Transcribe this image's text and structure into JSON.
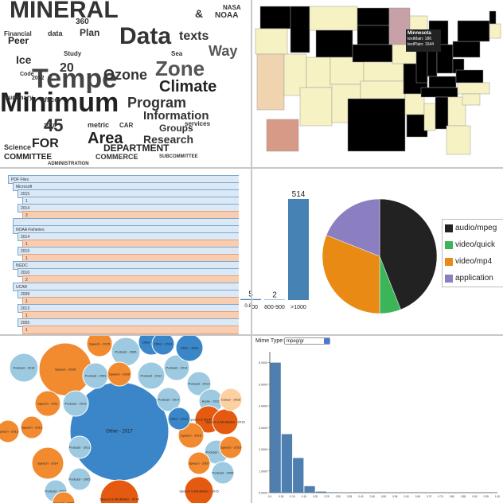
{
  "word_cloud": {
    "words": [
      {
        "t": "MINERAL",
        "s": 30,
        "c": "#333"
      },
      {
        "t": "Tempe",
        "s": 34,
        "c": "#444"
      },
      {
        "t": "Minimum",
        "s": 34,
        "c": "#222"
      },
      {
        "t": "Data",
        "s": 30,
        "c": "#333"
      },
      {
        "t": "Ozone",
        "s": 18,
        "c": "#333"
      },
      {
        "t": "Zone",
        "s": 26,
        "c": "#555"
      },
      {
        "t": "Climate",
        "s": 20,
        "c": "#222"
      },
      {
        "t": "Program",
        "s": 18,
        "c": "#333"
      },
      {
        "t": "Information",
        "s": 15,
        "c": "#333"
      },
      {
        "t": "Area",
        "s": 20,
        "c": "#222"
      },
      {
        "t": "Research",
        "s": 14,
        "c": "#333"
      },
      {
        "t": "DEPARTMENT",
        "s": 12,
        "c": "#222"
      },
      {
        "t": "texts",
        "s": 16,
        "c": "#333"
      },
      {
        "t": "Plan",
        "s": 12,
        "c": "#333"
      },
      {
        "t": "Peer",
        "s": 12,
        "c": "#222"
      },
      {
        "t": "Ice",
        "s": 14,
        "c": "#333"
      },
      {
        "t": "FOR",
        "s": 16,
        "c": "#222"
      },
      {
        "t": "Groups",
        "s": 12,
        "c": "#333"
      },
      {
        "t": "Science",
        "s": 9,
        "c": "#333"
      },
      {
        "t": "COMMITTEE",
        "s": 10,
        "c": "#222"
      },
      {
        "t": "Summary",
        "s": 8,
        "c": "#333"
      },
      {
        "t": "Office",
        "s": 8,
        "c": "#333"
      },
      {
        "t": "metric",
        "s": 9,
        "c": "#333"
      },
      {
        "t": "Study",
        "s": 8,
        "c": "#333"
      },
      {
        "t": "NOAA",
        "s": 10,
        "c": "#333"
      },
      {
        "t": "NASA",
        "s": 8,
        "c": "#333"
      },
      {
        "t": "Way",
        "s": 18,
        "c": "#555"
      },
      {
        "t": "Financial",
        "s": 8,
        "c": "#333"
      },
      {
        "t": "Sea",
        "s": 8,
        "c": "#333"
      },
      {
        "t": "ADMINISTRATION",
        "s": 6,
        "c": "#333"
      },
      {
        "t": "SUBCOMMITTEE",
        "s": 6,
        "c": "#333"
      },
      {
        "t": "COMMERCE",
        "s": 9,
        "c": "#333"
      },
      {
        "t": "data",
        "s": 9,
        "c": "#333"
      },
      {
        "t": "Code",
        "s": 7,
        "c": "#333"
      },
      {
        "t": "2012",
        "s": 7,
        "c": "#333"
      },
      {
        "t": "2010",
        "s": 7,
        "c": "#333"
      },
      {
        "t": "360",
        "s": 10,
        "c": "#333"
      },
      {
        "t": "45",
        "s": 22,
        "c": "#333"
      },
      {
        "t": "20",
        "s": 16,
        "c": "#333"
      },
      {
        "t": "CAR",
        "s": 8,
        "c": "#333"
      },
      {
        "t": "services",
        "s": 8,
        "c": "#333"
      },
      {
        "t": "&",
        "s": 14,
        "c": "#333"
      }
    ]
  },
  "map": {
    "states_black": [
      "WA",
      "ID",
      "WY",
      "ND",
      "SD",
      "NE",
      "MO",
      "IL",
      "IN",
      "OH",
      "KY",
      "TN",
      "MI",
      "PA",
      "NY",
      "VT",
      "TX",
      "AL",
      "WV",
      "VA"
    ],
    "highlight_color": "#c8a0a8",
    "tooltip": {
      "title": "Minnesota",
      "line1": "textMain: 186",
      "line2": "textPlain: 1644"
    }
  },
  "tree": {
    "rows": [
      {
        "label": "PDF Files",
        "color": "blue",
        "indent": 0
      },
      {
        "label": "Microsoft",
        "color": "blue",
        "indent": 1
      },
      {
        "label": "2015",
        "color": "blue",
        "indent": 2
      },
      {
        "label": "1",
        "color": "blue",
        "indent": 3
      },
      {
        "label": "2014",
        "color": "blue",
        "indent": 2
      },
      {
        "label": "2",
        "color": "orange",
        "indent": 3
      },
      {
        "label": "",
        "color": "blue",
        "indent": 1
      },
      {
        "label": "NOAA Fisheries",
        "color": "blue",
        "indent": 1
      },
      {
        "label": "2014",
        "color": "blue",
        "indent": 2
      },
      {
        "label": "1",
        "color": "orange",
        "indent": 3
      },
      {
        "label": "2015",
        "color": "blue",
        "indent": 2
      },
      {
        "label": "1",
        "color": "orange",
        "indent": 3
      },
      {
        "label": "NGDC",
        "color": "blue",
        "indent": 1
      },
      {
        "label": "2010",
        "color": "blue",
        "indent": 2
      },
      {
        "label": "2",
        "color": "orange",
        "indent": 3
      },
      {
        "label": "UCAR",
        "color": "blue",
        "indent": 1
      },
      {
        "label": "2008",
        "color": "blue",
        "indent": 2
      },
      {
        "label": "1",
        "color": "orange",
        "indent": 3
      },
      {
        "label": "2013",
        "color": "blue",
        "indent": 2
      },
      {
        "label": "1",
        "color": "orange",
        "indent": 3
      },
      {
        "label": "2005",
        "color": "blue",
        "indent": 2
      },
      {
        "label": "1",
        "color": "orange",
        "indent": 3
      }
    ],
    "bar_chart": {
      "categories": [
        "0-800",
        "800-900",
        ">1000"
      ],
      "values": [
        5,
        2,
        514
      ],
      "ymax": 514
    }
  },
  "pie": {
    "legend": [
      {
        "label": "audio/mpeg",
        "color": "#222222"
      },
      {
        "label": "video/quick",
        "color": "#3cb55a"
      },
      {
        "label": "video/mp4",
        "color": "#e98a14"
      },
      {
        "label": "application",
        "color": "#8b7fc2"
      }
    ],
    "slices": [
      {
        "name": "audio/mpeg",
        "value": 44,
        "color": "#222222"
      },
      {
        "name": "video/quick",
        "value": 6,
        "color": "#3cb55a"
      },
      {
        "name": "video/mp4",
        "value": 31,
        "color": "#e98a14"
      },
      {
        "name": "application",
        "value": 19,
        "color": "#8b7fc2"
      }
    ]
  },
  "bubbles": {
    "items": [
      {
        "label": "Other - 2017",
        "r": 62,
        "c": "#3a86c8"
      },
      {
        "label": "Speech - 2005",
        "r": 33,
        "c": "#f28a30"
      },
      {
        "label": "Podcast - 2016",
        "r": 18,
        "c": "#9ecae1"
      },
      {
        "label": "Speech - 2011",
        "r": 16,
        "c": "#f28a30"
      },
      {
        "label": "Podcast - 2015",
        "r": 16,
        "c": "#9ecae1"
      },
      {
        "label": "Other - 2015",
        "r": 16,
        "c": "#3a86c8"
      },
      {
        "label": "Speech - 2015",
        "r": 16,
        "c": "#f28a30"
      },
      {
        "label": "Podcast - 2006",
        "r": 18,
        "c": "#9ecae1"
      },
      {
        "label": "Speech - 2014",
        "r": 20,
        "c": "#f28a30"
      },
      {
        "label": "Podcast - 2009",
        "r": 16,
        "c": "#9ecae1"
      },
      {
        "label": "Speech - 2009",
        "r": 15,
        "c": "#f28a30"
      },
      {
        "label": "Podcast - 2012",
        "r": 17,
        "c": "#9ecae1"
      },
      {
        "label": "Podcast - 2014",
        "r": 16,
        "c": "#9ecae1"
      },
      {
        "label": "Other - 2016",
        "r": 17,
        "c": "#3a86c8"
      },
      {
        "label": "Podcast - 2017",
        "r": 15,
        "c": "#9ecae1"
      },
      {
        "label": "Podcast - 2013",
        "r": 15,
        "c": "#9ecae1"
      },
      {
        "label": "Audio - 2015",
        "r": 15,
        "c": "#9ecae1"
      },
      {
        "label": "Speech & Meditation - 2013",
        "r": 17,
        "c": "#e35a10"
      },
      {
        "label": "Speech - 2016",
        "r": 16,
        "c": "#f28a30"
      },
      {
        "label": "Speech & Meditation - 2016",
        "r": 16,
        "c": "#e35a10"
      },
      {
        "label": "Podcast - 2010",
        "r": 15,
        "c": "#9ecae1"
      },
      {
        "label": "Career - 2016",
        "r": 14,
        "c": "#fdd0a2"
      },
      {
        "label": "Speech - 2007",
        "r": 14,
        "c": "#f28a30"
      },
      {
        "label": "Podcast - 2008",
        "r": 14,
        "c": "#9ecae1"
      },
      {
        "label": "Speech - 2010",
        "r": 14,
        "c": "#f28a30"
      },
      {
        "label": "Speech - 2013",
        "r": 14,
        "c": "#f28a30"
      },
      {
        "label": "Podcast - 2011",
        "r": 14,
        "c": "#9ecae1"
      },
      {
        "label": "Podcast - 2005",
        "r": 14,
        "c": "#9ecae1"
      },
      {
        "label": "Other - 2014",
        "r": 14,
        "c": "#3a86c8"
      },
      {
        "label": "Speech & Meditation - 2015",
        "r": 18,
        "c": "#e35a10"
      },
      {
        "label": "Podcast - 2007",
        "r": 14,
        "c": "#9ecae1"
      },
      {
        "label": "Speech - 2012",
        "r": 14,
        "c": "#f28a30"
      },
      {
        "label": "Other - 2013",
        "r": 14,
        "c": "#3a86c8"
      },
      {
        "label": "Speech - 2008",
        "r": 14,
        "c": "#f28a30"
      },
      {
        "label": "Speech & Meditation - 2014",
        "r": 24,
        "c": "#e35a10"
      }
    ]
  },
  "histogram": {
    "mime_label": "Mime Type:",
    "mime_value": "mpeg/gr",
    "y_ticks": [
      "0.0000",
      "1.0000",
      "2.0000",
      "3.0000",
      "4.0000",
      "5.0000",
      "6.0000"
    ],
    "x_ticks": [
      "0.0",
      "0.05",
      "0.10",
      "0.15",
      "0.20",
      "0.25",
      "0.30",
      "0.35",
      "0.40",
      "0.45",
      "0.50",
      "0.55",
      "0.60",
      "0.65",
      "0.70",
      "0.75",
      "0.80",
      "0.85",
      "0.90",
      "0.95",
      "1.00"
    ],
    "values": [
      6.0,
      2.7,
      1.6,
      0.3,
      0.05,
      0.02,
      0.01,
      0.01,
      0.01,
      0.01,
      0.01,
      0.01,
      0.01,
      0.01,
      0.01,
      0.01,
      0.01,
      0.01,
      0.01,
      0.01
    ],
    "ymax": 6.5,
    "bar_color": "#4e7fb0"
  }
}
